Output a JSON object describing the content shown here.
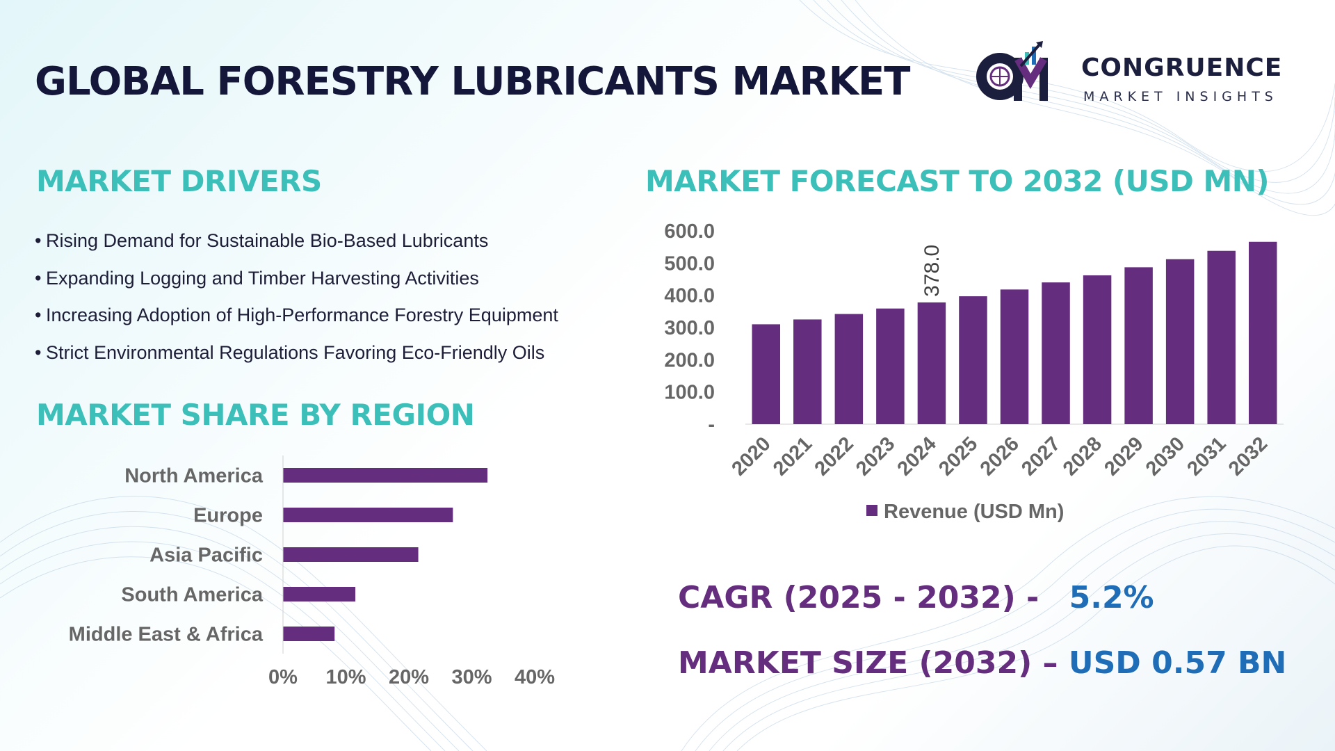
{
  "title": "GLOBAL FORESTRY LUBRICANTS MARKET",
  "logo": {
    "mark_letters": "CM",
    "name": "CONGRUENCE",
    "subtitle": "MARKET INSIGHTS"
  },
  "colors": {
    "title": "#14173a",
    "section_heading": "#3cbfb9",
    "bar": "#652d7e",
    "stat_label": "#652d7e",
    "stat_value": "#1e6db6",
    "axis_text": "#666666"
  },
  "drivers": {
    "heading": "MARKET DRIVERS",
    "items": [
      "Rising Demand for Sustainable Bio-Based Lubricants",
      "Expanding Logging and Timber Harvesting Activities",
      "Increasing Adoption of High-Performance Forestry Equipment",
      "Strict Environmental Regulations Favoring Eco-Friendly Oils"
    ]
  },
  "chart_data": [
    {
      "type": "bar",
      "orientation": "horizontal",
      "title": "MARKET SHARE BY REGION",
      "categories": [
        "North America",
        "Europe",
        "Asia Pacific",
        "South America",
        "Middle East & Africa"
      ],
      "values": [
        32.5,
        27,
        21.5,
        11.5,
        8.2
      ],
      "value_unit": "%",
      "xlim": [
        0,
        40
      ],
      "x_ticks": [
        "0%",
        "10%",
        "20%",
        "30%",
        "40%"
      ],
      "grid": false
    },
    {
      "type": "bar",
      "orientation": "vertical",
      "title": "MARKET FORECAST TO 2032 (USD MN)",
      "categories": [
        "2020",
        "2021",
        "2022",
        "2023",
        "2024",
        "2025",
        "2026",
        "2027",
        "2028",
        "2029",
        "2030",
        "2031",
        "2032"
      ],
      "series": [
        {
          "name": "Revenue (USD Mn)",
          "values": [
            310,
            325,
            342,
            359,
            378,
            397,
            418,
            440,
            462,
            487,
            512,
            538,
            566
          ]
        }
      ],
      "ylim": [
        0,
        600
      ],
      "y_ticks": [
        "-",
        "100.0",
        "200.0",
        "300.0",
        "400.0",
        "500.0",
        "600.0"
      ],
      "data_labels": [
        {
          "category": "2024",
          "text": "378.0"
        }
      ],
      "legend_position": "bottom",
      "grid": false
    }
  ],
  "stats": {
    "cagr_label": "CAGR (2025 - 2032) -",
    "cagr_value": "5.2%",
    "size_label": "MARKET SIZE (2032) –",
    "size_value": "USD 0.57 BN"
  }
}
